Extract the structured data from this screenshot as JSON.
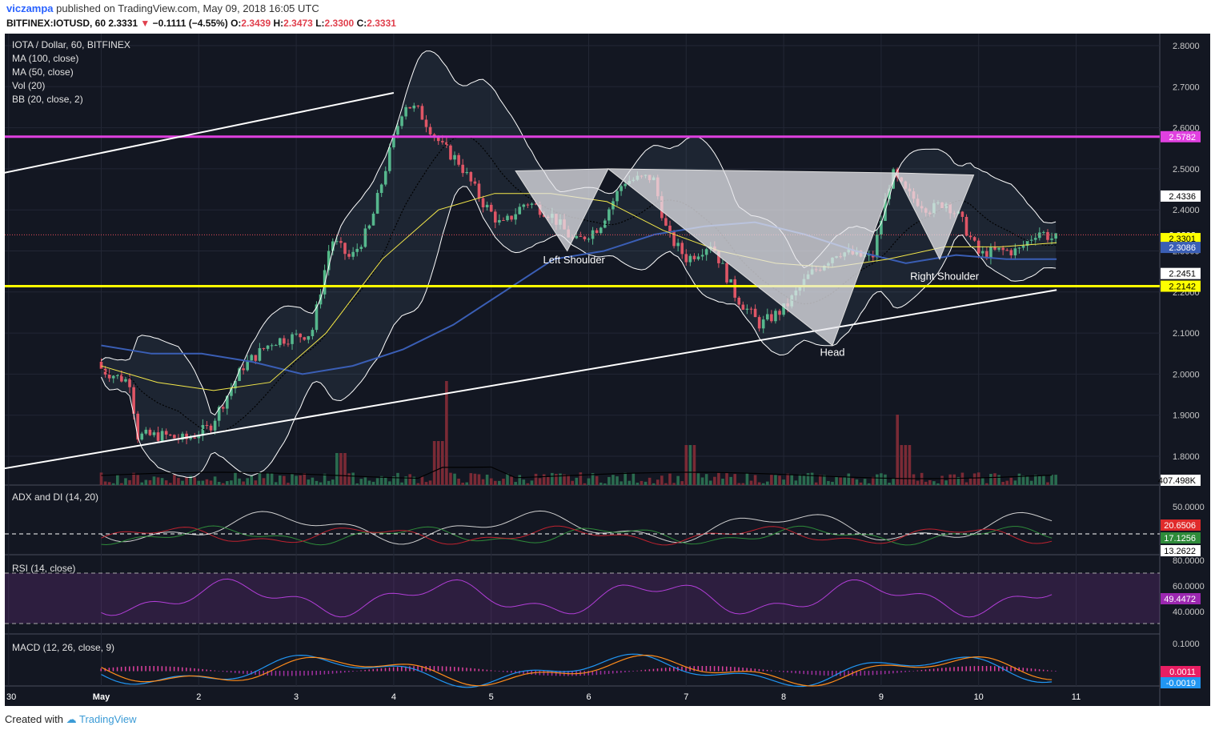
{
  "header": {
    "user": "viczampa",
    "published": "published on TradingView.com, May 09, 2018 16:05 UTC",
    "symbol": "BITFINEX:IOTUSD, 60",
    "last": "2.3331",
    "change": "−0.1111 (−4.55%)",
    "o_label": "O:",
    "o": "2.3439",
    "h_label": "H:",
    "h": "2.3473",
    "l_label": "L:",
    "l": "2.3300",
    "c_label": "C:",
    "c": "2.3331"
  },
  "legend": [
    "IOTA / Dollar, 60, BITFINEX",
    "MA (100, close)",
    "MA (50, close)",
    "Vol (20)",
    "BB (20, close, 2)"
  ],
  "annotations": {
    "left_shoulder": "Left Shoulder",
    "head": "Head",
    "right_shoulder": "Right Shoulder"
  },
  "footer": {
    "created_with": "Created with",
    "brand": "TradingView"
  },
  "colors": {
    "bg": "#131722",
    "up": "#53b987",
    "down": "#eb4d5c",
    "ma100": "#3a5eb5",
    "ma50": "#f5e94a",
    "bb": "#ffffff",
    "magenta": "#e040e0",
    "yellow": "#ffff00",
    "white_line": "#ffffff"
  },
  "chart_data": [
    {
      "type": "candlestick",
      "title": "IOTA / Dollar, 60, BITFINEX",
      "ylim": [
        1.75,
        2.82
      ],
      "y_ticks": [
        "2.8000",
        "2.7000",
        "2.6000",
        "2.5000",
        "2.4000",
        "2.3000",
        "2.2000",
        "2.1000",
        "2.0000",
        "1.9000",
        "1.8000"
      ],
      "x_ticks": [
        "30",
        "May",
        "2",
        "3",
        "4",
        "5",
        "6",
        "7",
        "8",
        "9",
        "10",
        "11"
      ],
      "x_tick_days": [
        -0.95,
        0,
        1,
        2,
        3,
        4,
        5,
        6,
        7,
        8,
        9,
        10
      ],
      "xlim": [
        -1.0,
        11.9
      ],
      "price_path": [
        [
          0,
          2.03
        ],
        [
          0.05,
          2.01
        ],
        [
          0.35,
          1.98
        ],
        [
          0.4,
          1.85
        ],
        [
          0.7,
          1.85
        ],
        [
          0.9,
          1.84
        ],
        [
          1.15,
          1.87
        ],
        [
          1.5,
          2.02
        ],
        [
          1.8,
          2.08
        ],
        [
          2.2,
          2.1
        ],
        [
          2.4,
          2.33
        ],
        [
          2.6,
          2.28
        ],
        [
          2.8,
          2.36
        ],
        [
          3.0,
          2.54
        ],
        [
          3.15,
          2.66
        ],
        [
          3.3,
          2.64
        ],
        [
          3.55,
          2.55
        ],
        [
          3.7,
          2.52
        ],
        [
          3.95,
          2.42
        ],
        [
          4.15,
          2.36
        ],
        [
          4.4,
          2.42
        ],
        [
          4.65,
          2.39
        ],
        [
          4.9,
          2.32
        ],
        [
          5.15,
          2.36
        ],
        [
          5.4,
          2.47
        ],
        [
          5.7,
          2.48
        ],
        [
          5.85,
          2.34
        ],
        [
          6.05,
          2.28
        ],
        [
          6.3,
          2.32
        ],
        [
          6.55,
          2.19
        ],
        [
          6.8,
          2.12
        ],
        [
          7.05,
          2.16
        ],
        [
          7.3,
          2.24
        ],
        [
          7.6,
          2.3
        ],
        [
          7.95,
          2.28
        ],
        [
          8.15,
          2.49
        ],
        [
          8.3,
          2.44
        ],
        [
          8.55,
          2.4
        ],
        [
          8.7,
          2.42
        ],
        [
          8.85,
          2.38
        ],
        [
          9.05,
          2.29
        ],
        [
          9.25,
          2.3
        ],
        [
          9.45,
          2.3
        ],
        [
          9.65,
          2.35
        ],
        [
          9.8,
          2.33
        ]
      ],
      "indicators": {
        "ma100": [
          2.07,
          2.05,
          2.05,
          2.03,
          2.0,
          2.02,
          2.06,
          2.12,
          2.2,
          2.28,
          2.3,
          2.34,
          2.36,
          2.37,
          2.34,
          2.3,
          2.27,
          2.29,
          2.28,
          2.28
        ],
        "ma50": [
          2.02,
          1.98,
          1.96,
          1.98,
          2.1,
          2.28,
          2.4,
          2.44,
          2.44,
          2.42,
          2.35,
          2.3,
          2.27,
          2.26,
          2.28,
          2.31,
          2.31,
          2.32
        ],
        "bb_upper_last": 2.4336,
        "bb_lower_last": 2.2451
      },
      "volume_last": "407.498K",
      "levels": [
        {
          "value": 2.5782,
          "label": "2.5782",
          "color": "#e040e0"
        },
        {
          "value": 2.2142,
          "label": "2.2142",
          "color": "#ffff00"
        }
      ],
      "price_labels": [
        {
          "value": 2.4336,
          "label": "2.4336"
        },
        {
          "value": 2.3393,
          "label": "2.3393"
        },
        {
          "value": 2.3301,
          "label": "2.3301"
        },
        {
          "value": 2.3086,
          "label": "2.3086"
        },
        {
          "value": 2.2451,
          "label": "2.2451"
        }
      ]
    },
    {
      "type": "line",
      "title": "ADX and DI (14, 20)",
      "y_ticks": [
        "50.0000"
      ],
      "values": {
        "adx": "13.2622",
        "di_plus": "17.1256",
        "di_minus": "20.6506"
      }
    },
    {
      "type": "line",
      "title": "RSI (14, close)",
      "y_ticks": [
        "80.0000",
        "60.0000",
        "40.0000"
      ],
      "value": "49.4472"
    },
    {
      "type": "line",
      "title": "MACD (12, 26, close, 9)",
      "y_ticks": [
        "0.1000"
      ],
      "values": {
        "signal": "0.0011",
        "macd": "-0.0019"
      }
    }
  ]
}
